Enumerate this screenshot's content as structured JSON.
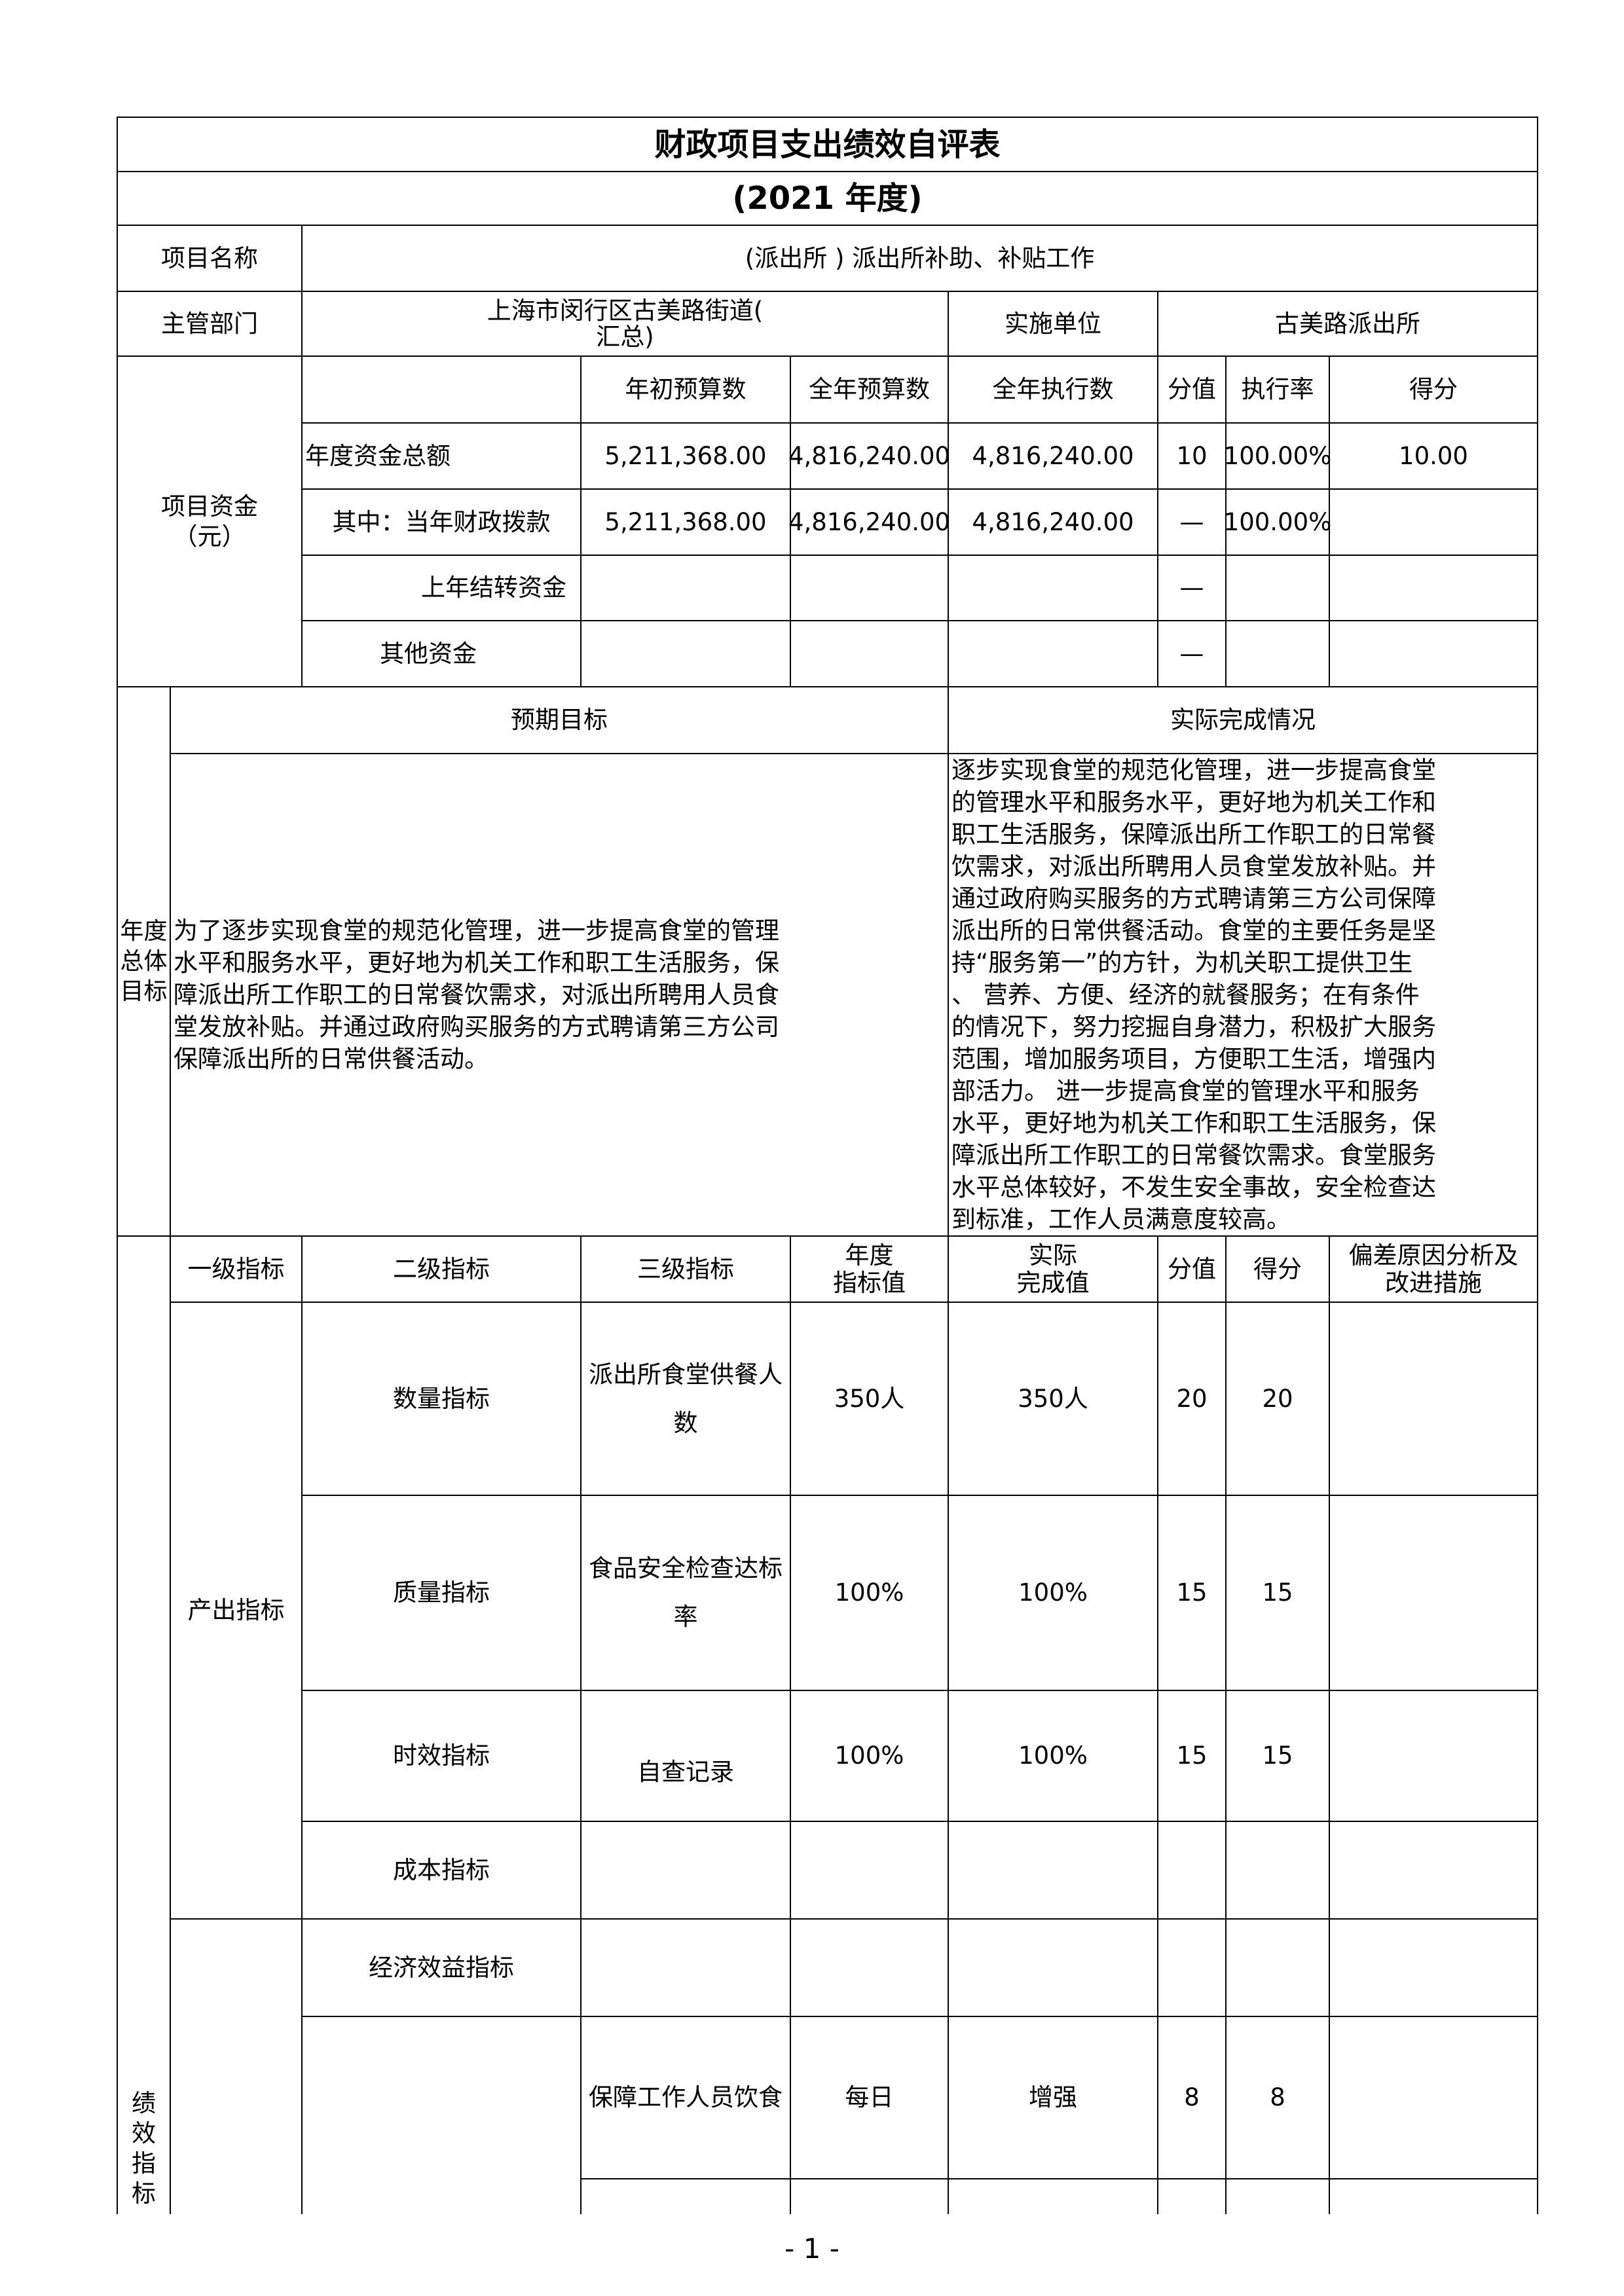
{
  "title": "财政项目支出绩效自评表",
  "year": "(2021 年度)",
  "project_name_label": "项目名称",
  "project_name": "(派出所 ) 派出所补助、补贴工作",
  "dept_label": "主管部门",
  "dept": "上海市闵行区古美路街道(\n汇总)",
  "unit_label": "实施单位",
  "unit": "古美路派出所",
  "funding": {
    "label": "项目资金\n（元）",
    "headers": [
      "年初预算数",
      "全年预算数",
      "全年执行数",
      "分值",
      "执行率",
      "得分"
    ],
    "rows": [
      {
        "label": "年度资金总额",
        "values": [
          "5,211,368.00",
          "4,816,240.00",
          "4,816,240.00",
          "10",
          "100.00%",
          "10.00"
        ]
      },
      {
        "label": "其中：当年财政拨款",
        "values": [
          "5,211,368.00",
          "4,816,240.00",
          "4,816,240.00",
          "—",
          "100.00%",
          ""
        ]
      },
      {
        "label": "上年结转资金",
        "values": [
          "",
          "",
          "",
          "—",
          "",
          ""
        ]
      },
      {
        "label": "其他资金",
        "values": [
          "",
          "",
          "",
          "—",
          "",
          ""
        ]
      }
    ]
  },
  "goals": {
    "label": "年度\n总体\n目标",
    "expected_header": "预期目标",
    "actual_header": "实际完成情况",
    "expected": "为了逐步实现食堂的规范化管理，进一步提高食堂的管理\n水平和服务水平，更好地为机关工作和职工生活服务，保\n障派出所工作职工的日常餐饮需求，对派出所聘用人员食\n堂发放补贴。并通过政府购买服务的方式聘请第三方公司\n保障派出所的日常供餐活动。",
    "actual": "逐步实现食堂的规范化管理，进一步提高食堂\n的管理水平和服务水平，更好地为机关工作和\n职工生活服务，保障派出所工作职工的日常餐\n饮需求，对派出所聘用人员食堂发放补贴。并\n通过政府购买服务的方式聘请第三方公司保障\n派出所的日常供餐活动。食堂的主要任务是坚\n持“服务第一”的方针，为机关职工提供卫生\n、 营养、方便、经济的就餐服务；在有条件\n的情况下，努力挖掘自身潜力，积极扩大服务\n范围，增加服务项目，方便职工生活，增强内\n部活力。 进一步提高食堂的管理水平和服务\n水平，更好地为机关工作和职工生活服务，保\n障派出所工作职工的日常餐饮需求。食堂服务\n水平总体较好，不发生安全事故，安全检查达\n到标准，工作人员满意度较高。"
  },
  "indicators": {
    "label": "绩\n效\n指\n标",
    "headers": [
      "一级指标",
      "二级指标",
      "三级指标",
      "年度\n指标值",
      "实际\n完成值",
      "分值",
      "得分",
      "偏差原因分析及\n改进措施"
    ],
    "output_label": "产出指标",
    "rows": [
      {
        "level2": "数量指标",
        "level3": "派出所食堂供餐人\n数",
        "target": "350人",
        "actual": "350人",
        "weight": "20",
        "score": "20"
      },
      {
        "level2": "质量指标",
        "level3": "食品安全检查达标\n率",
        "target": "100%",
        "actual": "100%",
        "weight": "15",
        "score": "15"
      },
      {
        "level2": "时效指标",
        "level3": "自查记录",
        "target": "100%",
        "actual": "100%",
        "weight": "15",
        "score": "15"
      },
      {
        "level2": "成本指标",
        "level3": "",
        "target": "",
        "actual": "",
        "weight": "",
        "score": ""
      },
      {
        "level2": "经济效益指标",
        "level3": "",
        "target": "",
        "actual": "",
        "weight": "",
        "score": ""
      },
      {
        "level2": "",
        "level3": "保障工作人员饮食",
        "target": "每日",
        "actual": "增强",
        "weight": "8",
        "score": "8"
      }
    ]
  },
  "page_number": "- 1 -"
}
